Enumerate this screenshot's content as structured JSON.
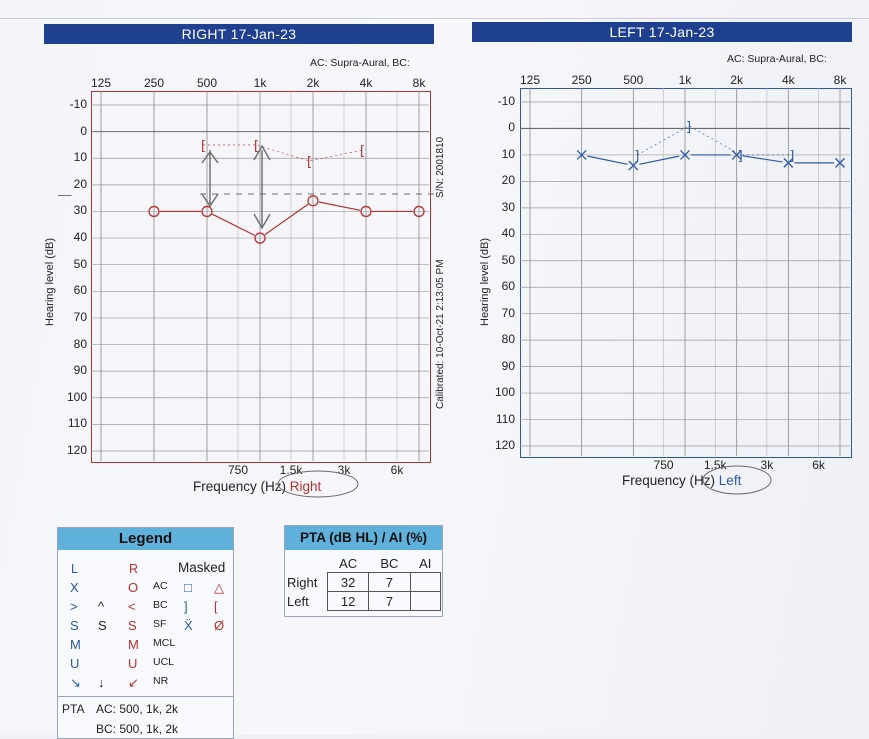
{
  "right_panel": {
    "banner": "RIGHT  17-Jan-23",
    "ac_note": "AC: Supra-Aural, BC:",
    "y_axis_label": "Hearing level (dB)",
    "freq_title_prefix": "Frequency (Hz)",
    "ear_label": "Right",
    "serial": "S/N: 2001810",
    "calibrated": "Calibrated: 10-Oct-21 2:13:05 PM",
    "note_mark": "—"
  },
  "left_panel": {
    "banner": "LEFT  17-Jan-23",
    "ac_note": "AC: Supra-Aural, BC:",
    "y_axis_label": "Hearing level (dB)",
    "freq_title_prefix": "Frequency (Hz)",
    "ear_label": "Left"
  },
  "axes": {
    "top_ticks": [
      "125",
      "250",
      "500",
      "1k",
      "2k",
      "4k",
      "8k"
    ],
    "bottom_ticks": [
      "750",
      "1.5k",
      "3k",
      "6k"
    ],
    "db_ticks": [
      "-10",
      "0",
      "10",
      "20",
      "30",
      "40",
      "50",
      "60",
      "70",
      "80",
      "90",
      "100",
      "110",
      "120"
    ]
  },
  "chart_data": [
    {
      "type": "line",
      "title": "RIGHT  17-Jan-23",
      "xlabel": "Frequency (Hz)",
      "ylabel": "Hearing level (dB)",
      "x_scale": "log",
      "ylim": [
        120,
        -10
      ],
      "series": [
        {
          "name": "AC",
          "x": [
            250,
            500,
            1000,
            2000,
            4000,
            8000
          ],
          "y": [
            30,
            30,
            40,
            26,
            30,
            30
          ],
          "color": "#b5322f",
          "marker": "O"
        },
        {
          "name": "BC Masked",
          "x": [
            500,
            1000,
            2000,
            4000
          ],
          "y": [
            5,
            5,
            11,
            7
          ],
          "color": "#b5322f",
          "marker": "["
        }
      ]
    },
    {
      "type": "line",
      "title": "LEFT  17-Jan-23",
      "xlabel": "Frequency (Hz)",
      "ylabel": "Hearing level (dB)",
      "x_scale": "log",
      "ylim": [
        120,
        -10
      ],
      "series": [
        {
          "name": "AC",
          "x": [
            250,
            500,
            1000,
            2000,
            4000,
            8000
          ],
          "y": [
            10,
            14,
            10,
            10,
            13,
            13
          ],
          "color": "#2a5aa8",
          "marker": "X"
        },
        {
          "name": "BC Masked",
          "x": [
            500,
            1000,
            2000,
            4000
          ],
          "y": [
            10,
            -1,
            10,
            10
          ],
          "color": "#2a5aa8",
          "marker": "]"
        }
      ]
    }
  ],
  "legend": {
    "title": "Legend",
    "col_left": "L",
    "col_right": "R",
    "col_masked": "Masked",
    "rows": [
      {
        "l": "X",
        "r": "O",
        "label": "AC",
        "m1": "□",
        "m2": "△"
      },
      {
        "l": ">",
        "l2": "^",
        "r": "<",
        "label": "BC",
        "m1": "]",
        "m2": "["
      },
      {
        "l": "S",
        "l2": "S",
        "r": "S",
        "label": "SF",
        "m1": "Ẍ",
        "m2": "Ø"
      },
      {
        "l": "M",
        "r": "M",
        "label": "MCL"
      },
      {
        "l": "U",
        "r": "U",
        "label": "UCL"
      },
      {
        "l": "↘",
        "l2": "↓",
        "r": "↙",
        "label": "NR"
      }
    ],
    "pta_ac": "AC: 500, 1k, 2k",
    "pta_bc": "BC: 500, 1k, 2k",
    "pta_label": "PTA"
  },
  "pta": {
    "title": "PTA (dB HL) / AI (%)",
    "headers": [
      "AC",
      "BC",
      "AI"
    ],
    "rows": [
      {
        "label": "Right",
        "ac": "32",
        "bc": "7",
        "ai": ""
      },
      {
        "label": "Left",
        "ac": "12",
        "bc": "7",
        "ai": ""
      }
    ]
  },
  "colors": {
    "banner": "#1f3f8f",
    "right": "#b5322f",
    "left": "#2a5aa8",
    "header": "#5fb1dc",
    "pencil": "#6b6b6b"
  }
}
